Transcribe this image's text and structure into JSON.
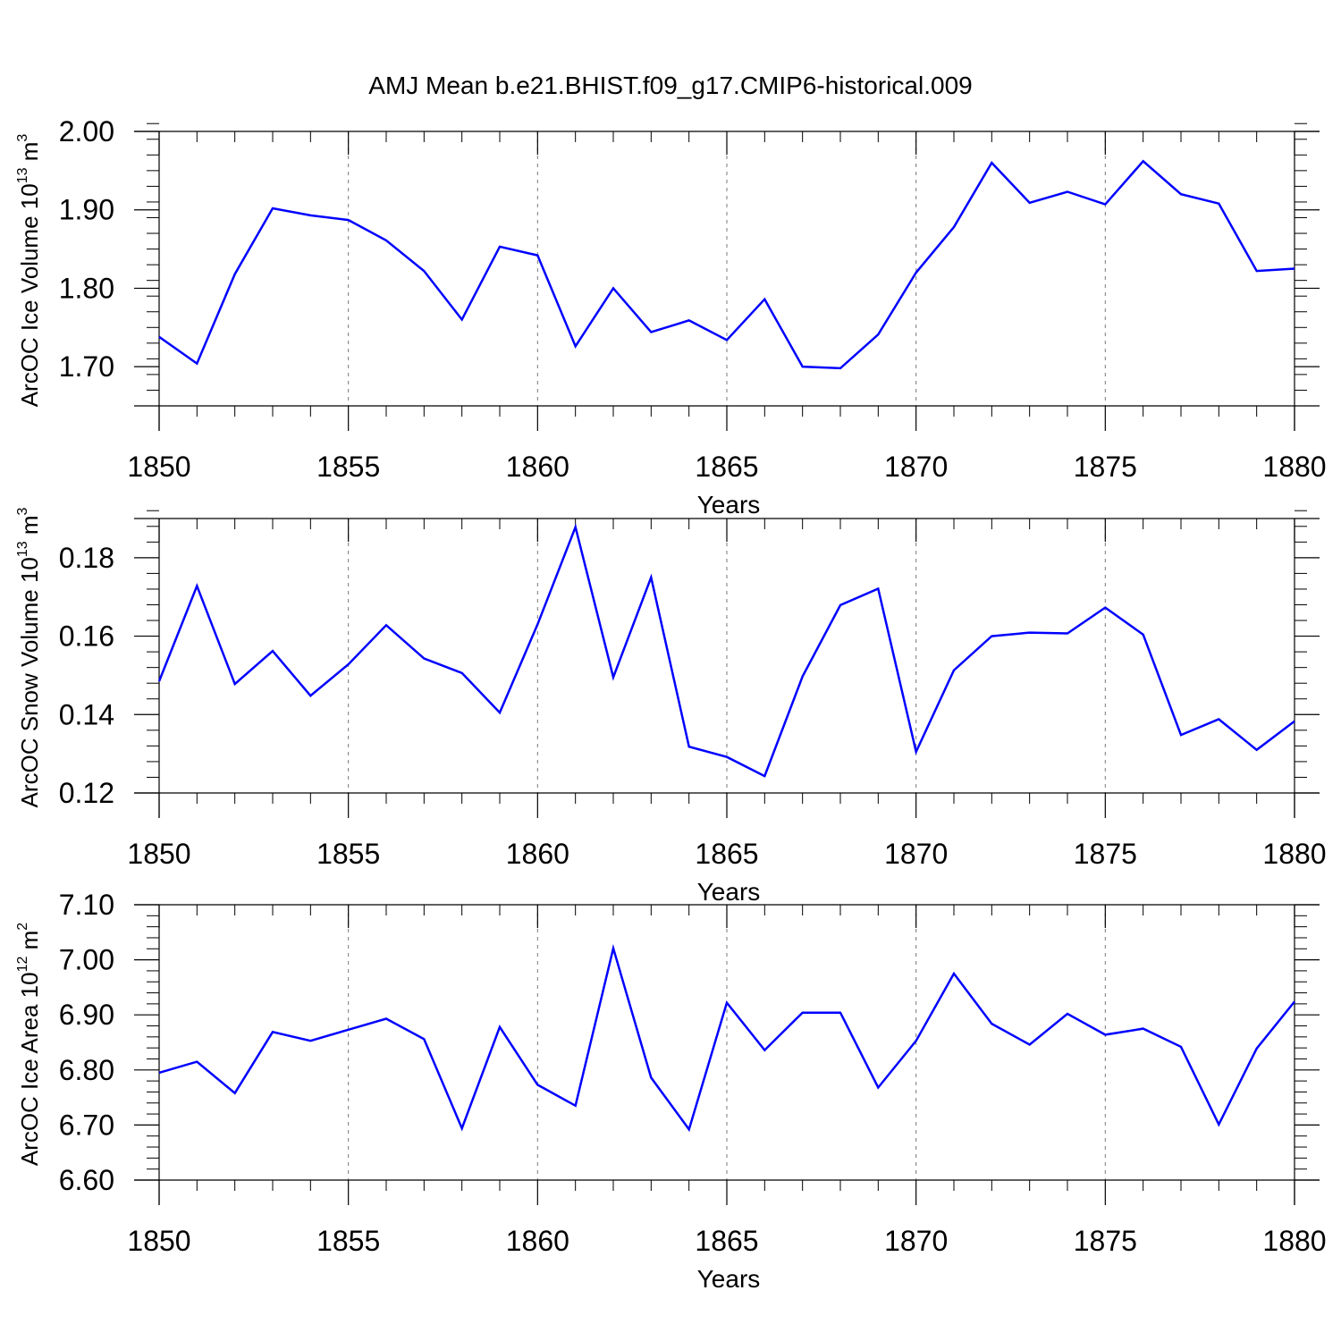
{
  "chart_data": [
    {
      "type": "line",
      "title": "AMJ Mean b.e21.BHIST.f09_g17.CMIP6-historical.009",
      "ylabel": {
        "prefix": "ArcOC Ice Volume 10",
        "exponent": "13",
        "unit": " m",
        "unit_exponent": "3"
      },
      "xlabel": "Years",
      "xlim": [
        1850,
        1880
      ],
      "ylim": [
        1.65,
        2.0
      ],
      "y_major_ticks": [
        1.7,
        1.8,
        1.9,
        2.0
      ],
      "y_tick_labels": [
        "1.70",
        "1.80",
        "1.90",
        "2.00"
      ],
      "y_minor_step": 0.02,
      "x_major_ticks": [
        1850,
        1855,
        1860,
        1865,
        1870,
        1875,
        1880
      ],
      "x_tick_labels": [
        "1850",
        "1855",
        "1860",
        "1865",
        "1870",
        "1875",
        "1880"
      ],
      "series": [
        {
          "name": "Ice Volume",
          "color": "#0000ff",
          "x": [
            1850,
            1851,
            1852,
            1853,
            1854,
            1855,
            1856,
            1857,
            1858,
            1859,
            1860,
            1861,
            1862,
            1863,
            1864,
            1865,
            1866,
            1867,
            1868,
            1869,
            1870,
            1871,
            1872,
            1873,
            1874,
            1875,
            1876,
            1877,
            1878,
            1879,
            1880
          ],
          "values": [
            1.738,
            1.704,
            1.818,
            1.902,
            1.893,
            1.887,
            1.861,
            1.822,
            1.76,
            1.853,
            1.842,
            1.726,
            1.8,
            1.744,
            1.759,
            1.734,
            1.786,
            1.7,
            1.698,
            1.741,
            1.82,
            1.878,
            1.96,
            1.909,
            1.923,
            1.907,
            1.962,
            1.92,
            1.908,
            1.822,
            1.825
          ]
        }
      ]
    },
    {
      "type": "line",
      "title": "",
      "ylabel": {
        "prefix": "ArcOC Snow Volume 10",
        "exponent": "13",
        "unit": " m",
        "unit_exponent": "3"
      },
      "xlabel": "Years",
      "xlim": [
        1850,
        1880
      ],
      "ylim": [
        0.12,
        0.19
      ],
      "y_major_ticks": [
        0.12,
        0.14,
        0.16,
        0.18
      ],
      "y_tick_labels": [
        "0.12",
        "0.14",
        "0.16",
        "0.18"
      ],
      "y_minor_step": 0.004,
      "x_major_ticks": [
        1850,
        1855,
        1860,
        1865,
        1870,
        1875,
        1880
      ],
      "x_tick_labels": [
        "1850",
        "1855",
        "1860",
        "1865",
        "1870",
        "1875",
        "1880"
      ],
      "series": [
        {
          "name": "Snow Volume",
          "color": "#0000ff",
          "x": [
            1850,
            1851,
            1852,
            1853,
            1854,
            1855,
            1856,
            1857,
            1858,
            1859,
            1860,
            1861,
            1862,
            1863,
            1864,
            1865,
            1866,
            1867,
            1868,
            1869,
            1870,
            1871,
            1872,
            1873,
            1874,
            1875,
            1876,
            1877,
            1878,
            1879,
            1880
          ],
          "values": [
            0.1485,
            0.1728,
            0.1478,
            0.1562,
            0.1448,
            0.1528,
            0.1628,
            0.1543,
            0.1506,
            0.1405,
            0.163,
            0.1878,
            0.1495,
            0.175,
            0.1318,
            0.1292,
            0.1243,
            0.1497,
            0.1679,
            0.1721,
            0.1305,
            0.1513,
            0.16,
            0.1609,
            0.1607,
            0.1673,
            0.1604,
            0.1348,
            0.1388,
            0.131,
            0.1383
          ]
        }
      ]
    },
    {
      "type": "line",
      "title": "",
      "ylabel": {
        "prefix": "ArcOC Ice Area 10",
        "exponent": "12",
        "unit": " m",
        "unit_exponent": "2"
      },
      "xlabel": "Years",
      "xlim": [
        1850,
        1880
      ],
      "ylim": [
        6.6,
        7.1
      ],
      "y_major_ticks": [
        6.6,
        6.7,
        6.8,
        6.9,
        7.0,
        7.1
      ],
      "y_tick_labels": [
        "6.60",
        "6.70",
        "6.80",
        "6.90",
        "7.00",
        "7.10"
      ],
      "y_minor_step": 0.02,
      "x_major_ticks": [
        1850,
        1855,
        1860,
        1865,
        1870,
        1875,
        1880
      ],
      "x_tick_labels": [
        "1850",
        "1855",
        "1860",
        "1865",
        "1870",
        "1875",
        "1880"
      ],
      "series": [
        {
          "name": "Ice Area",
          "color": "#0000ff",
          "x": [
            1850,
            1851,
            1852,
            1853,
            1854,
            1855,
            1856,
            1857,
            1858,
            1859,
            1860,
            1861,
            1862,
            1863,
            1864,
            1865,
            1866,
            1867,
            1868,
            1869,
            1870,
            1871,
            1872,
            1873,
            1874,
            1875,
            1876,
            1877,
            1878,
            1879,
            1880
          ],
          "values": [
            6.795,
            6.815,
            6.758,
            6.869,
            6.853,
            6.873,
            6.893,
            6.856,
            6.694,
            6.878,
            6.773,
            6.735,
            7.021,
            6.786,
            6.692,
            6.922,
            6.836,
            6.904,
            6.904,
            6.768,
            6.853,
            6.975,
            6.884,
            6.846,
            6.902,
            6.864,
            6.875,
            6.842,
            6.701,
            6.839,
            6.924
          ]
        }
      ]
    }
  ]
}
